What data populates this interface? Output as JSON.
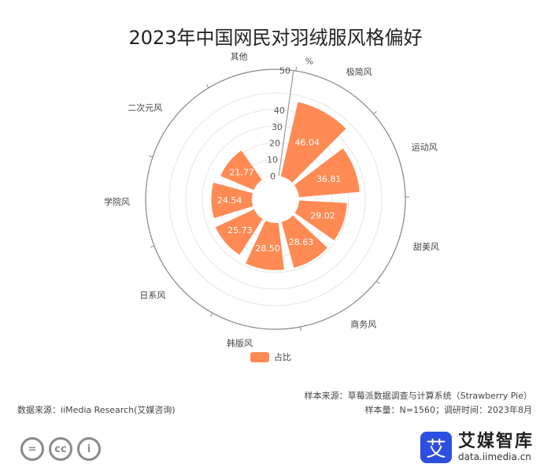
{
  "title": "2023年中国网民对羽绒服风格偏好",
  "colors": {
    "bar": "#ff8a54",
    "axis": "#888888",
    "grid": "#e6e6e6"
  },
  "chart_data": {
    "type": "bar",
    "subtype": "polar-radial-bar",
    "categories": [
      "极简风",
      "运动风",
      "甜美风",
      "商务风",
      "韩版风",
      "日系风",
      "学院风",
      "二次元风",
      "其他"
    ],
    "series": [
      {
        "name": "占比",
        "values": [
          46.04,
          36.81,
          29.02,
          28.63,
          28.5,
          25.73,
          24.54,
          21.77,
          0.13
        ]
      }
    ],
    "radial_axis": {
      "unit": "%",
      "range": [
        0,
        50
      ],
      "ticks": [
        0,
        10,
        20,
        30,
        40,
        50
      ]
    },
    "grid": true,
    "legend_position": "bottom"
  },
  "legend": {
    "label": "占比"
  },
  "sources": {
    "sample_source": "样本来源：草莓派数据调查与计算系统（Strawberry Pie）",
    "sample_size": "样本量：N=1560；调研时间：2023年8月",
    "data_source": "数据来源：iiMedia Research(艾媒咨询)"
  },
  "cc_icons": [
    "equal-icon",
    "cc-icon",
    "person-icon"
  ],
  "cc_text": {
    "nd": "=",
    "cc": "cc",
    "by": "i"
  },
  "brand": {
    "mark": "艾",
    "name": "艾媒智库",
    "url": "data.iimedia.cn"
  }
}
